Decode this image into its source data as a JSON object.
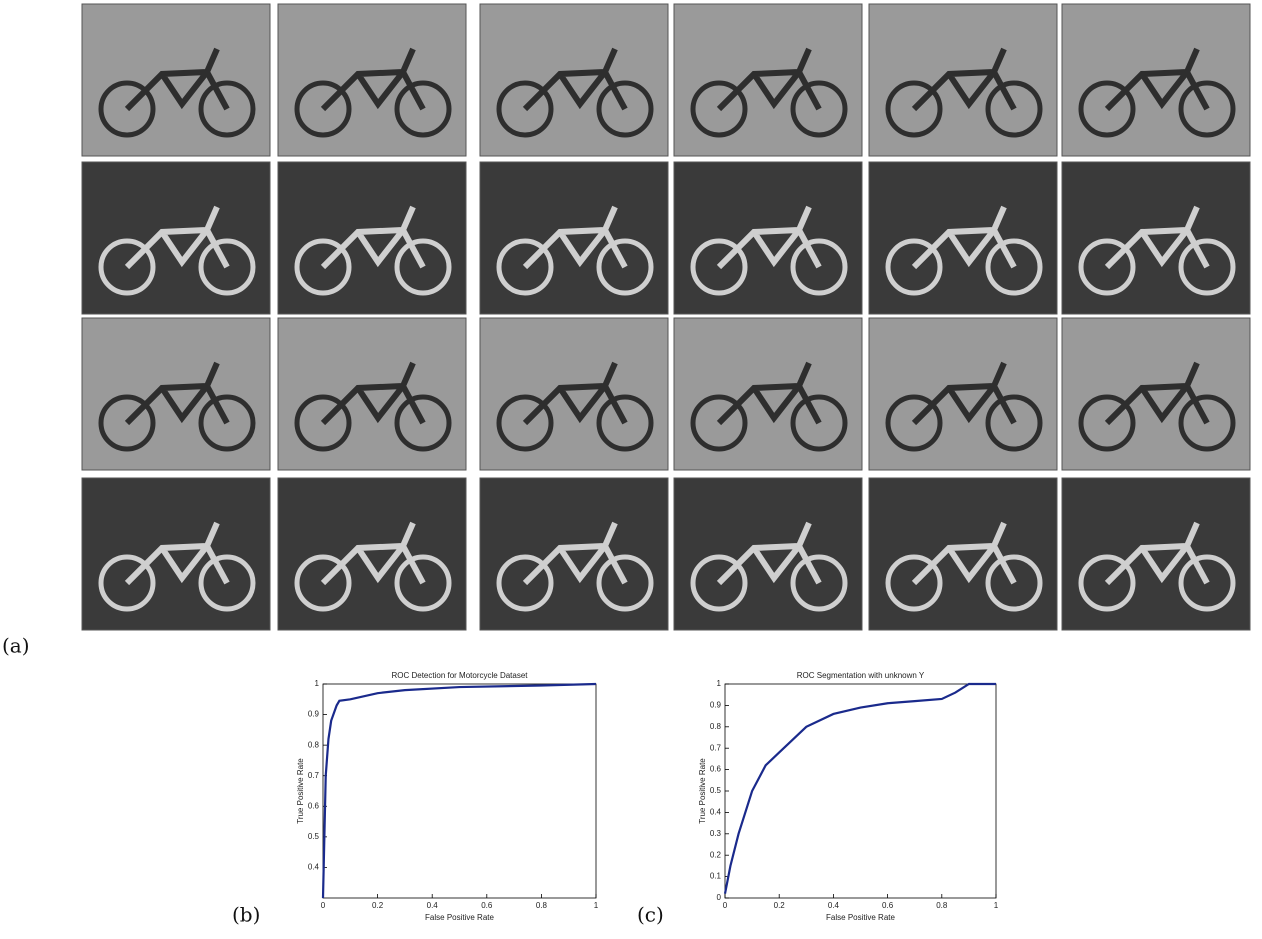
{
  "figure_labels": [
    "(a)",
    "(b)",
    "(c)"
  ],
  "chart_data": [
    {
      "type": "line",
      "title": "ROC Detection for Motorcycle Dataset",
      "x_label": "False Positive Rate",
      "y_label": "True Positive Rate",
      "x": [
        0,
        0.005,
        0.01,
        0.02,
        0.03,
        0.05,
        0.06,
        0.1,
        0.2,
        0.3,
        0.5,
        0.8,
        1
      ],
      "values": [
        0.3,
        0.5,
        0.7,
        0.82,
        0.88,
        0.93,
        0.945,
        0.95,
        0.97,
        0.98,
        0.99,
        0.995,
        1
      ],
      "color": "#1a2a8c",
      "xlim": [
        0,
        1
      ],
      "ylim": [
        0.3,
        1
      ],
      "xticks": [
        0,
        0.2,
        0.4,
        0.6,
        0.8,
        1
      ],
      "yticks": [
        0.4,
        0.5,
        0.6,
        0.7,
        0.8,
        0.9,
        1
      ]
    },
    {
      "type": "line",
      "title": "ROC Segmentation with unknown Y",
      "x_label": "False Positive Rate",
      "y_label": "True Positive Rate",
      "x": [
        0,
        0.02,
        0.05,
        0.1,
        0.15,
        0.2,
        0.3,
        0.4,
        0.5,
        0.6,
        0.7,
        0.8,
        0.85,
        0.9,
        1
      ],
      "values": [
        0.02,
        0.15,
        0.3,
        0.5,
        0.62,
        0.68,
        0.8,
        0.86,
        0.89,
        0.91,
        0.92,
        0.93,
        0.96,
        1,
        1
      ],
      "color": "#1a2a8c",
      "xlim": [
        0,
        1
      ],
      "ylim": [
        0,
        1
      ],
      "xticks": [
        0,
        0.2,
        0.4,
        0.6,
        0.8,
        1
      ],
      "yticks": [
        0,
        0.1,
        0.2,
        0.3,
        0.4,
        0.5,
        0.6,
        0.7,
        0.8,
        0.9,
        1
      ]
    }
  ]
}
